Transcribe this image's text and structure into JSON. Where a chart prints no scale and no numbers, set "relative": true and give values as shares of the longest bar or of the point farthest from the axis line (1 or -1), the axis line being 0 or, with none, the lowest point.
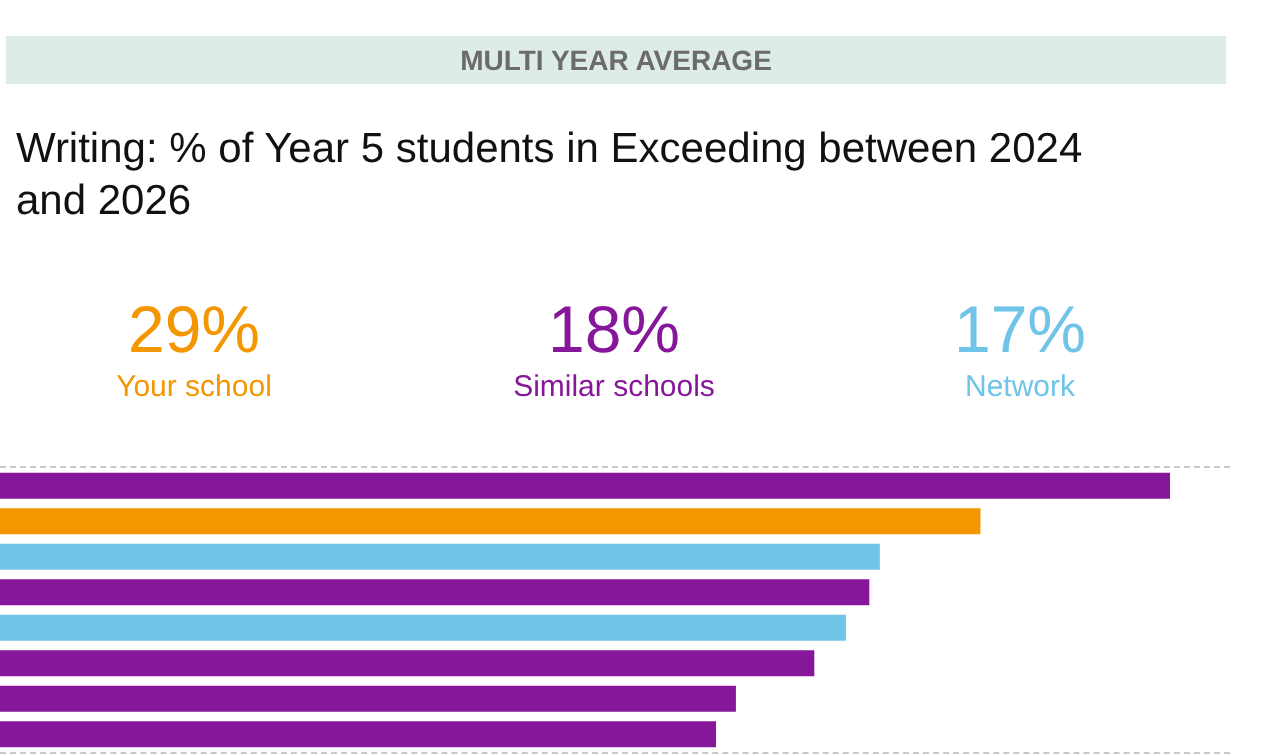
{
  "chart_data": {
    "type": "bar",
    "orientation": "horizontal",
    "stacked": true,
    "relative": true,
    "subtitle": "MULTI YEAR AVERAGE",
    "title": "Writing: % of Year 5 students in Exceeding between 2024 and 2026",
    "categories": [
      null,
      null,
      null,
      null,
      null,
      null,
      null,
      null
    ],
    "series": [
      {
        "name": "Your school",
        "color": "#f39600",
        "values": [
          null,
          0.838,
          null,
          null,
          null,
          null,
          null,
          null
        ]
      },
      {
        "name": "Similar schools",
        "color": "#87179a",
        "values": [
          1,
          null,
          null,
          0.743,
          null,
          0.696,
          0.629,
          0.612
        ]
      },
      {
        "name": "Network",
        "color": "#70c4e8",
        "values": [
          null,
          null,
          0.752,
          null,
          0.723,
          null,
          null,
          null
        ]
      }
    ],
    "annotations": [
      "29%",
      "18%",
      "17%"
    ],
    "legend": "top"
  }
}
